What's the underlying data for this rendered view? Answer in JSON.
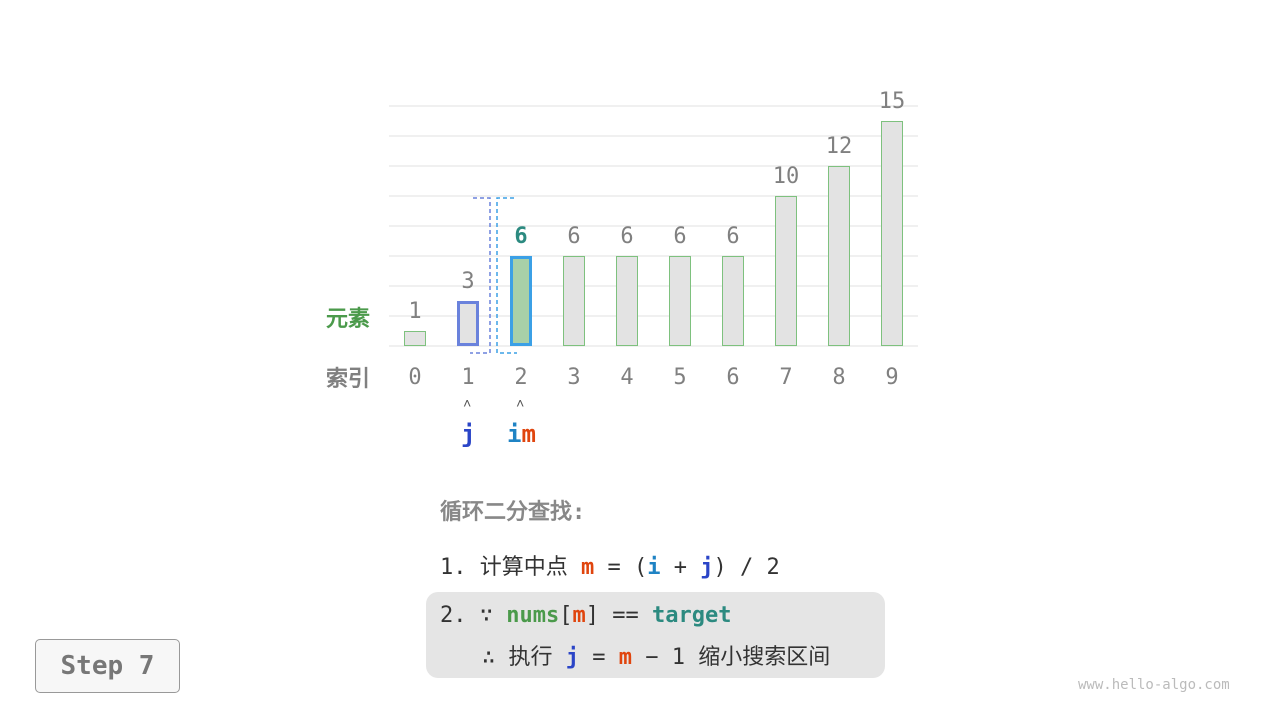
{
  "diagram": {
    "row_labels": {
      "element": "元素",
      "index": "索引"
    },
    "values": [
      1,
      3,
      6,
      6,
      6,
      6,
      6,
      10,
      12,
      15
    ],
    "indices": [
      "0",
      "1",
      "2",
      "3",
      "4",
      "5",
      "6",
      "7",
      "8",
      "9"
    ],
    "highlight": {
      "j_index": 1,
      "m_index": 2
    },
    "pointers": {
      "j": "j",
      "i": "i",
      "m": "m",
      "arrow": "˄"
    },
    "colors": {
      "bar_fill": "#e3e3e3",
      "bar_stroke": "#7ec17e",
      "j_color": "#6a82dc",
      "m_color": "#3ba0e6",
      "m_fill": "#a8d0a8",
      "label_green": "#4b9a4b",
      "value_m": "#2c8a80",
      "text_gray": "#808080"
    }
  },
  "explanation": {
    "heading": "循环二分查找:",
    "step1": {
      "num": "1.",
      "text": "计算中点",
      "m": "m",
      "eq": "=",
      "lp": "(",
      "i": "i",
      "plus": "+",
      "j": "j",
      "rp": ")",
      "rest": "/ 2"
    },
    "step2": {
      "num": "2.",
      "because": "∵",
      "nums": "nums",
      "lb": "[",
      "m": "m",
      "rb": "]",
      "eqeq": "==",
      "target": "target",
      "therefore": "∴",
      "exec": "执行",
      "j": "j",
      "eq": "=",
      "m2": "m",
      "minus": "−",
      "one": "1",
      "rest": "缩小搜索区间"
    }
  },
  "step_label": "Step 7",
  "watermark": "www.hello-algo.com"
}
